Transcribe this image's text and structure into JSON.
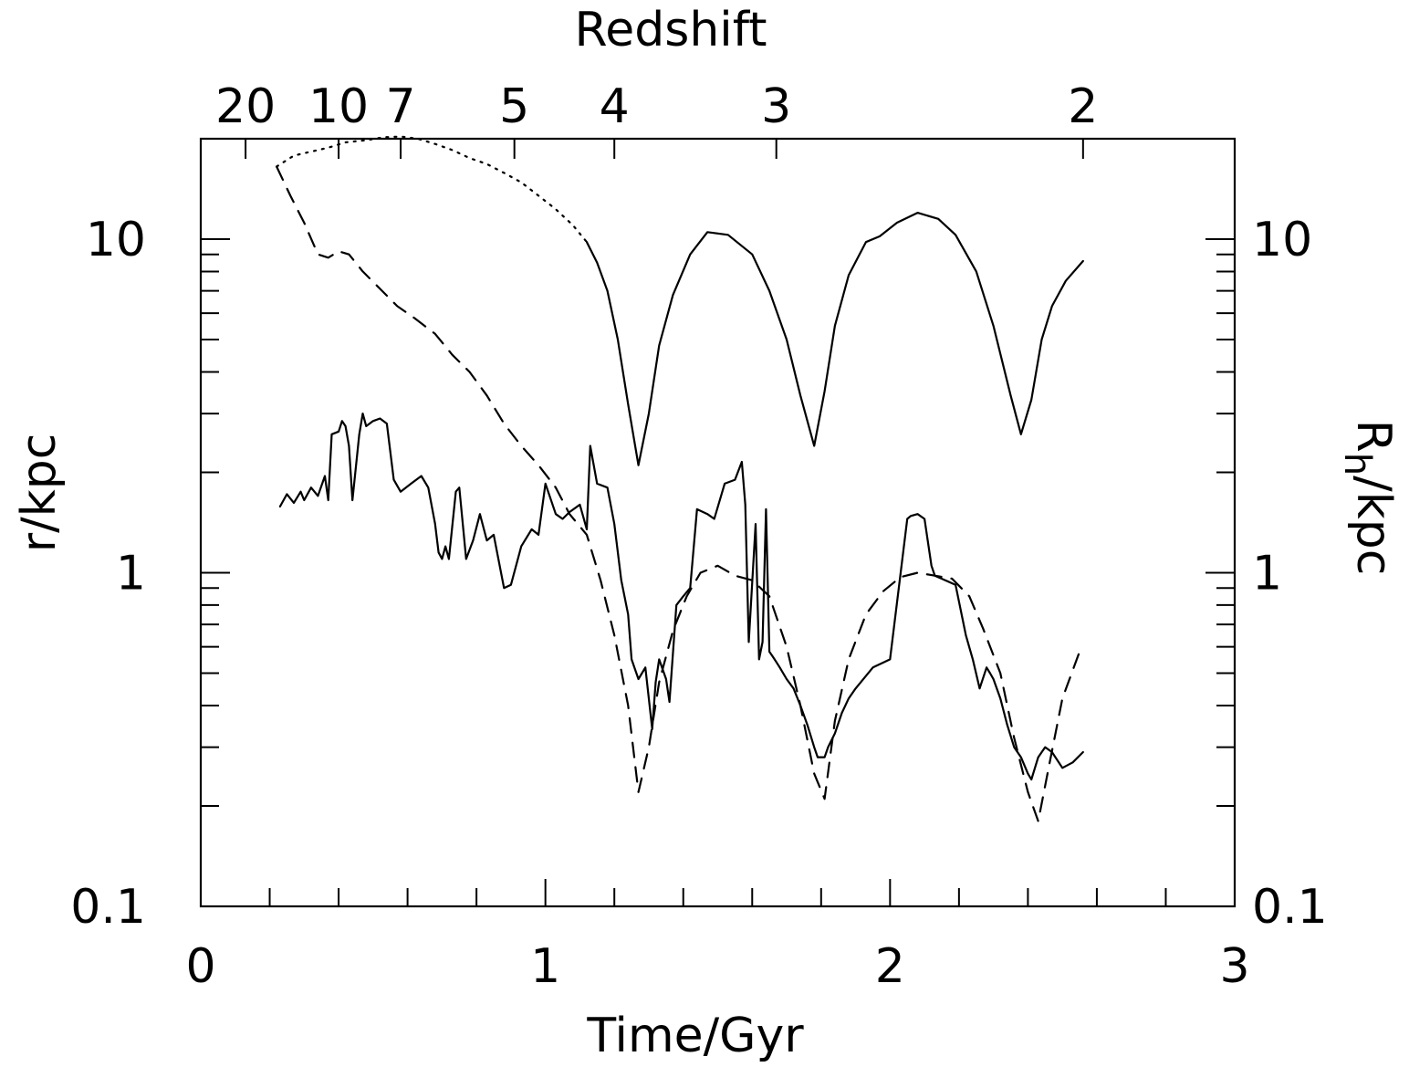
{
  "chart_data": {
    "type": "line",
    "xlabel": "Time/Gyr",
    "ylabel_left": "r/kpc",
    "ylabel_right_main": "R",
    "ylabel_right_sub": "h",
    "ylabel_right_tail": "/kpc",
    "top_axis_label": "Redshift",
    "xlim": [
      0,
      3
    ],
    "ylim": [
      0.1,
      20
    ],
    "y_scale": "log",
    "grid": false,
    "x_ticks": [
      0,
      1,
      2,
      3
    ],
    "x_ticklabels": [
      "0",
      "1",
      "2",
      "3"
    ],
    "y_ticks": [
      0.1,
      1,
      10
    ],
    "y_ticklabels": [
      "0.1",
      "1",
      "10"
    ],
    "redshift_ticks": [
      {
        "t": 0.13,
        "label": "20"
      },
      {
        "t": 0.4,
        "label": "10"
      },
      {
        "t": 0.58,
        "label": "7"
      },
      {
        "t": 0.91,
        "label": "5"
      },
      {
        "t": 1.2,
        "label": "4"
      },
      {
        "t": 1.67,
        "label": "3"
      },
      {
        "t": 2.56,
        "label": "2"
      }
    ],
    "series": [
      {
        "style": "dotted",
        "x": [
          0.22,
          0.27,
          0.32,
          0.37,
          0.42,
          0.48,
          0.53,
          0.58,
          0.63,
          0.68,
          0.73,
          0.78,
          0.83,
          0.88,
          0.93,
          0.98,
          1.03,
          1.08,
          1.12
        ],
        "y": [
          16.5,
          17.8,
          18.3,
          18.8,
          19.5,
          19.8,
          20.2,
          20.3,
          20.0,
          19.3,
          18.5,
          17.5,
          16.8,
          15.8,
          14.8,
          13.5,
          12.3,
          11.0,
          9.8
        ]
      },
      {
        "style": "solid",
        "x": [
          1.12,
          1.15,
          1.18,
          1.21,
          1.24,
          1.27,
          1.3,
          1.33,
          1.37,
          1.42,
          1.47,
          1.53,
          1.6,
          1.65,
          1.7,
          1.74,
          1.78,
          1.81,
          1.84,
          1.88,
          1.93,
          1.97,
          2.02,
          2.08,
          2.14,
          2.19,
          2.25,
          2.3,
          2.35,
          2.38,
          2.41,
          2.44,
          2.47,
          2.51,
          2.56
        ],
        "y": [
          9.8,
          8.5,
          7.0,
          5.0,
          3.2,
          2.1,
          3.0,
          4.8,
          6.8,
          9.0,
          10.5,
          10.3,
          9.0,
          7.0,
          5.0,
          3.4,
          2.4,
          3.5,
          5.5,
          7.8,
          9.8,
          10.2,
          11.2,
          12.0,
          11.5,
          10.3,
          8.0,
          5.5,
          3.4,
          2.6,
          3.3,
          5.0,
          6.3,
          7.5,
          8.6
        ]
      },
      {
        "style": "dashed",
        "x": [
          0.22,
          0.26,
          0.3,
          0.34,
          0.37,
          0.4,
          0.43,
          0.47,
          0.52,
          0.57,
          0.62,
          0.68,
          0.73,
          0.78,
          0.83,
          0.88,
          0.93,
          0.98,
          1.03,
          1.07,
          1.12,
          1.16,
          1.2,
          1.24,
          1.27,
          1.3,
          1.33,
          1.37,
          1.41,
          1.45,
          1.5,
          1.55,
          1.6,
          1.65,
          1.7,
          1.74,
          1.78,
          1.81,
          1.84,
          1.88,
          1.93,
          1.98,
          2.03,
          2.08,
          2.13,
          2.18,
          2.23,
          2.27,
          2.32,
          2.36,
          2.4,
          2.43,
          2.46,
          2.5,
          2.55
        ],
        "y": [
          16.5,
          13.5,
          11.2,
          9.0,
          8.8,
          9.2,
          9.0,
          8.0,
          7.1,
          6.3,
          5.8,
          5.2,
          4.5,
          4.0,
          3.4,
          2.8,
          2.4,
          2.1,
          1.8,
          1.5,
          1.3,
          0.95,
          0.65,
          0.4,
          0.22,
          0.3,
          0.47,
          0.67,
          0.85,
          1.0,
          1.05,
          0.98,
          0.95,
          0.85,
          0.6,
          0.4,
          0.25,
          0.21,
          0.36,
          0.55,
          0.75,
          0.88,
          0.97,
          1.0,
          0.98,
          0.96,
          0.85,
          0.68,
          0.5,
          0.32,
          0.22,
          0.18,
          0.26,
          0.42,
          0.58
        ]
      },
      {
        "style": "solid",
        "x": [
          0.23,
          0.25,
          0.27,
          0.29,
          0.3,
          0.32,
          0.34,
          0.36,
          0.37,
          0.38,
          0.4,
          0.41,
          0.42,
          0.43,
          0.44,
          0.46,
          0.47,
          0.48,
          0.5,
          0.52,
          0.54,
          0.56,
          0.58,
          0.61,
          0.64,
          0.66,
          0.68,
          0.69,
          0.7,
          0.71,
          0.72,
          0.74,
          0.75,
          0.77,
          0.79,
          0.81,
          0.83,
          0.85,
          0.88,
          0.9,
          0.93,
          0.96,
          0.98,
          1.0,
          1.03,
          1.05,
          1.07,
          1.1,
          1.12,
          1.13,
          1.15,
          1.18,
          1.2,
          1.22,
          1.24,
          1.25,
          1.27,
          1.29,
          1.31,
          1.32,
          1.33,
          1.35,
          1.36,
          1.38,
          1.4,
          1.42,
          1.44,
          1.47,
          1.49,
          1.52,
          1.55,
          1.57,
          1.58,
          1.59,
          1.61,
          1.62,
          1.63,
          1.64,
          1.65,
          1.66,
          1.67,
          1.68,
          1.7,
          1.72,
          1.74,
          1.76,
          1.78,
          1.79,
          1.81,
          1.82,
          1.84,
          1.86,
          1.88,
          1.9,
          1.95,
          2.0,
          2.05,
          2.06,
          2.08,
          2.1,
          2.12,
          2.13,
          2.16,
          2.19,
          2.22,
          2.24,
          2.26,
          2.28,
          2.29,
          2.3,
          2.32,
          2.34,
          2.36,
          2.38,
          2.4,
          2.41,
          2.43,
          2.45,
          2.47,
          2.5,
          2.53,
          2.56
        ],
        "y": [
          1.58,
          1.72,
          1.62,
          1.75,
          1.65,
          1.8,
          1.7,
          1.95,
          1.65,
          2.6,
          2.65,
          2.85,
          2.75,
          2.4,
          1.65,
          2.6,
          3.0,
          2.75,
          2.85,
          2.9,
          2.8,
          1.9,
          1.75,
          1.85,
          1.95,
          1.8,
          1.4,
          1.15,
          1.1,
          1.2,
          1.1,
          1.75,
          1.8,
          1.1,
          1.25,
          1.5,
          1.25,
          1.3,
          0.9,
          0.92,
          1.2,
          1.35,
          1.3,
          1.85,
          1.5,
          1.45,
          1.52,
          1.6,
          1.35,
          2.4,
          1.85,
          1.8,
          1.4,
          0.95,
          0.75,
          0.55,
          0.48,
          0.52,
          0.34,
          0.47,
          0.55,
          0.48,
          0.41,
          0.8,
          0.85,
          0.9,
          1.55,
          1.5,
          1.45,
          1.85,
          1.9,
          2.15,
          1.6,
          0.62,
          1.4,
          0.55,
          0.62,
          1.55,
          0.58,
          0.56,
          0.54,
          0.52,
          0.48,
          0.45,
          0.4,
          0.35,
          0.3,
          0.28,
          0.28,
          0.3,
          0.33,
          0.38,
          0.42,
          0.45,
          0.52,
          0.55,
          1.45,
          1.48,
          1.5,
          1.45,
          1.05,
          0.98,
          0.95,
          0.92,
          0.65,
          0.55,
          0.45,
          0.52,
          0.5,
          0.48,
          0.42,
          0.35,
          0.3,
          0.28,
          0.25,
          0.24,
          0.28,
          0.3,
          0.29,
          0.26,
          0.27,
          0.29
        ]
      }
    ]
  }
}
